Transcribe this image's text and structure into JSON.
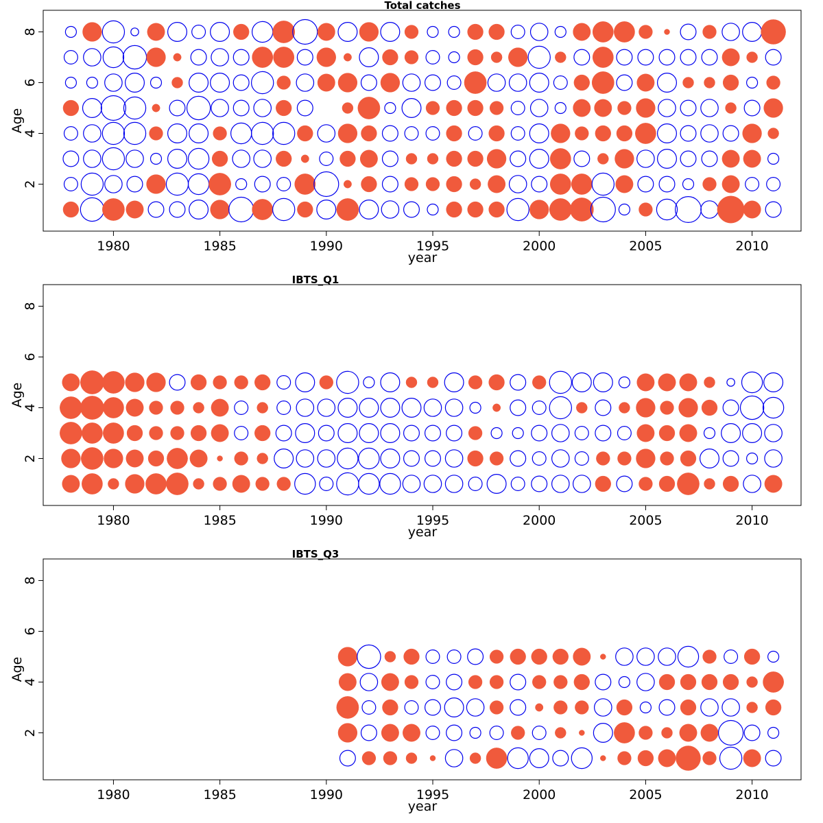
{
  "chart_data": [
    {
      "type": "scatter",
      "subtype": "bubble-residuals",
      "title": "Total catches",
      "xlabel": "year",
      "ylabel": "Age",
      "xlim": [
        1976.7,
        2012.3
      ],
      "ylim": [
        0.15,
        8.85
      ],
      "xticks": [
        1980,
        1985,
        1990,
        1995,
        2000,
        2005,
        2010
      ],
      "yticks": [
        2,
        4,
        6,
        8
      ],
      "colors": {
        "positive": "#F05A3C",
        "negative": "#0000EE"
      },
      "legend": "none",
      "grid": false,
      "years_first": 1978,
      "ages": [
        1,
        2,
        3,
        4,
        5,
        6,
        7,
        8
      ],
      "residuals": [
        [
          0.4,
          -0.3,
          -0.4,
          -0.3,
          0.4,
          -0.2,
          -0.3,
          -0.2
        ],
        [
          -0.9,
          -0.8,
          -0.5,
          -0.5,
          -0.6,
          -0.2,
          -0.5,
          0.6
        ],
        [
          0.8,
          -0.5,
          -0.8,
          -0.8,
          -1.0,
          -0.5,
          -0.7,
          -0.8
        ],
        [
          0.5,
          -0.4,
          -0.5,
          -0.8,
          -0.8,
          -0.6,
          -0.9,
          -0.1
        ],
        [
          -0.4,
          0.6,
          -0.2,
          0.3,
          0.1,
          -0.2,
          0.6,
          0.5
        ],
        [
          -0.4,
          -0.8,
          -0.6,
          -0.6,
          -0.4,
          0.2,
          0.1,
          -0.6
        ],
        [
          -0.6,
          -0.7,
          -0.7,
          -0.6,
          -0.9,
          -0.6,
          -0.4,
          -0.3
        ],
        [
          0.6,
          0.8,
          0.4,
          0.3,
          -0.5,
          -0.6,
          -0.5,
          -0.6
        ],
        [
          -1.0,
          -0.2,
          -0.5,
          -0.7,
          -0.4,
          -0.4,
          -0.4,
          0.4
        ],
        [
          0.7,
          -0.4,
          -0.5,
          -0.8,
          -0.5,
          -0.8,
          0.7,
          -0.7
        ],
        [
          -0.8,
          -0.3,
          0.4,
          -0.8,
          0.4,
          0.3,
          0.7,
          0.8
        ],
        [
          0.4,
          0.7,
          0.1,
          0.4,
          -0.4,
          -0.5,
          -0.4,
          -1.0
        ],
        [
          -0.6,
          -1.0,
          -0.3,
          -0.5,
          0.0,
          0.5,
          0.6,
          0.5
        ],
        [
          0.8,
          0.1,
          0.4,
          0.6,
          0.2,
          0.6,
          0.1,
          -0.6
        ],
        [
          -0.6,
          0.4,
          0.5,
          0.4,
          0.8,
          -0.4,
          -0.6,
          0.6
        ],
        [
          -0.5,
          -0.4,
          -0.4,
          -0.4,
          -0.2,
          0.6,
          0.4,
          -0.6
        ],
        [
          -0.4,
          0.3,
          0.2,
          -0.3,
          -0.6,
          -0.5,
          0.3,
          0.3
        ],
        [
          -0.2,
          0.3,
          0.2,
          -0.3,
          0.3,
          -0.4,
          -0.3,
          -0.2
        ],
        [
          0.4,
          0.4,
          0.4,
          0.4,
          0.4,
          -0.3,
          -0.2,
          -0.2
        ],
        [
          0.4,
          0.2,
          0.4,
          -0.3,
          0.4,
          0.8,
          0.4,
          0.4
        ],
        [
          0.4,
          0.5,
          0.6,
          0.4,
          0.3,
          -0.5,
          0.2,
          0.4
        ],
        [
          -0.8,
          -0.5,
          -0.4,
          -0.3,
          -0.3,
          -0.5,
          0.6,
          -0.3
        ],
        [
          0.6,
          -0.4,
          -0.6,
          -0.6,
          -0.5,
          -0.6,
          -0.8,
          -0.5
        ],
        [
          0.8,
          0.7,
          0.7,
          0.6,
          -0.2,
          -0.3,
          0.2,
          -0.2
        ],
        [
          0.9,
          0.7,
          -0.4,
          0.3,
          0.5,
          0.4,
          -0.4,
          0.5
        ],
        [
          -1.0,
          -0.8,
          0.2,
          0.4,
          0.5,
          0.8,
          0.7,
          0.7
        ],
        [
          -0.2,
          0.5,
          0.6,
          0.4,
          0.3,
          -0.4,
          -0.4,
          0.7
        ],
        [
          0.3,
          -0.4,
          -0.5,
          0.7,
          0.6,
          0.5,
          -0.4,
          0.3
        ],
        [
          -0.7,
          -0.4,
          -0.6,
          -0.6,
          -0.5,
          -0.6,
          -0.4,
          0.05
        ],
        [
          -1.1,
          -0.2,
          -0.4,
          -0.4,
          -0.4,
          0.2,
          -0.4,
          -0.4
        ],
        [
          -0.5,
          0.3,
          -0.4,
          -0.5,
          -0.5,
          0.2,
          -0.4,
          0.3
        ],
        [
          1.2,
          0.5,
          0.5,
          -0.4,
          0.2,
          0.4,
          0.5,
          -0.5
        ],
        [
          0.5,
          -0.3,
          0.5,
          0.6,
          -0.4,
          -0.2,
          0.2,
          -0.6
        ],
        [
          -0.4,
          -0.3,
          -0.2,
          0.2,
          0.6,
          0.3,
          -0.4,
          1.0
        ]
      ]
    },
    {
      "type": "scatter",
      "subtype": "bubble-residuals",
      "title": "IBTS_Q1",
      "xlabel": "year",
      "ylabel": "Age",
      "xlim": [
        1976.7,
        2012.3
      ],
      "ylim": [
        0.15,
        8.85
      ],
      "xticks": [
        1980,
        1985,
        1990,
        1995,
        2000,
        2005,
        2010
      ],
      "yticks": [
        2,
        4,
        6,
        8
      ],
      "colors": {
        "positive": "#F05A3C",
        "negative": "#0000EE"
      },
      "legend": "none",
      "grid": false,
      "years_first": 1978,
      "ages": [
        1,
        2,
        3,
        4,
        5
      ],
      "residuals": [
        [
          0.5,
          0.6,
          0.8,
          0.8,
          0.5
        ],
        [
          0.7,
          0.8,
          0.7,
          0.9,
          0.9
        ],
        [
          0.2,
          0.6,
          0.7,
          0.7,
          0.8
        ],
        [
          0.6,
          0.5,
          0.4,
          0.5,
          0.6
        ],
        [
          0.7,
          0.4,
          0.3,
          0.3,
          0.6
        ],
        [
          0.8,
          0.7,
          0.3,
          0.3,
          -0.4
        ],
        [
          0.2,
          0.5,
          0.4,
          0.2,
          0.4
        ],
        [
          0.3,
          0.05,
          0.5,
          0.5,
          0.3
        ],
        [
          0.5,
          0.3,
          -0.3,
          -0.3,
          0.3
        ],
        [
          0.3,
          0.2,
          0.4,
          0.2,
          0.4
        ],
        [
          0.3,
          -0.6,
          -0.4,
          -0.3,
          -0.3
        ],
        [
          -0.7,
          -0.5,
          -0.6,
          -0.5,
          -0.6
        ],
        [
          -0.3,
          -0.5,
          -0.4,
          -0.5,
          0.3
        ],
        [
          -0.8,
          -0.7,
          -0.6,
          -0.6,
          -0.8
        ],
        [
          -0.7,
          -0.7,
          -0.6,
          -0.6,
          -0.2
        ],
        [
          -0.7,
          -0.6,
          -0.6,
          -0.6,
          -0.6
        ],
        [
          -0.5,
          -0.4,
          -0.4,
          -0.6,
          0.2
        ],
        [
          -0.5,
          -0.4,
          -0.4,
          -0.5,
          0.2
        ],
        [
          -0.5,
          -0.5,
          -0.4,
          -0.5,
          -0.6
        ],
        [
          -0.3,
          0.4,
          0.3,
          -0.2,
          0.3
        ],
        [
          -0.6,
          0.3,
          -0.2,
          0.1,
          0.4
        ],
        [
          -0.3,
          -0.4,
          -0.2,
          -0.4,
          -0.4
        ],
        [
          -0.4,
          -0.3,
          -0.4,
          -0.3,
          0.3
        ],
        [
          -0.5,
          -0.5,
          -0.5,
          -0.8,
          -0.8
        ],
        [
          -0.5,
          -0.3,
          -0.3,
          0.2,
          -0.6
        ],
        [
          0.4,
          0.3,
          -0.4,
          -0.4,
          -0.6
        ],
        [
          -0.4,
          0.3,
          -0.3,
          0.2,
          -0.2
        ],
        [
          0.3,
          0.6,
          0.5,
          0.6,
          0.5
        ],
        [
          0.4,
          0.3,
          0.4,
          0.3,
          0.5
        ],
        [
          0.8,
          0.4,
          0.5,
          0.6,
          0.5
        ],
        [
          0.2,
          -0.6,
          -0.2,
          0.4,
          0.2
        ],
        [
          0.4,
          -0.4,
          -0.6,
          -0.4,
          -0.1
        ],
        [
          -0.5,
          -0.2,
          -0.6,
          -0.9,
          -0.7
        ],
        [
          0.5,
          -0.5,
          -0.5,
          -0.7,
          -0.6
        ]
      ]
    },
    {
      "type": "scatter",
      "subtype": "bubble-residuals",
      "title": "IBTS_Q3",
      "xlabel": "year",
      "ylabel": "Age",
      "xlim": [
        1976.7,
        2012.3
      ],
      "ylim": [
        0.15,
        8.85
      ],
      "xticks": [
        1980,
        1985,
        1990,
        1995,
        2000,
        2005,
        2010
      ],
      "yticks": [
        2,
        4,
        6,
        8
      ],
      "colors": {
        "positive": "#F05A3C",
        "negative": "#0000EE"
      },
      "legend": "none",
      "grid": false,
      "years_first": 1991,
      "ages": [
        1,
        2,
        3,
        4,
        5
      ],
      "residuals": [
        [
          -0.4,
          0.6,
          0.8,
          0.5,
          0.6
        ],
        [
          0.3,
          -0.4,
          -0.3,
          -0.5,
          -0.9
        ],
        [
          0.3,
          0.5,
          0.4,
          0.5,
          0.2
        ],
        [
          0.2,
          0.5,
          -0.3,
          0.3,
          0.4
        ],
        [
          0.05,
          -0.3,
          -0.4,
          -0.3,
          -0.3
        ],
        [
          -0.5,
          -0.4,
          -0.6,
          -0.4,
          -0.3
        ],
        [
          0.2,
          -0.2,
          -0.5,
          0.3,
          -0.4
        ],
        [
          0.7,
          -0.3,
          0.3,
          0.3,
          0.3
        ],
        [
          -0.7,
          0.3,
          -0.4,
          -0.4,
          0.4
        ],
        [
          -0.6,
          -0.3,
          0.1,
          0.3,
          0.4
        ],
        [
          -0.4,
          0.2,
          0.3,
          0.3,
          0.4
        ],
        [
          -0.7,
          0.05,
          0.3,
          0.4,
          0.5
        ],
        [
          0.05,
          -0.6,
          -0.5,
          -0.4,
          0.05
        ],
        [
          0.3,
          0.7,
          0.4,
          -0.2,
          -0.5
        ],
        [
          0.4,
          0.3,
          -0.2,
          -0.5,
          -0.5
        ],
        [
          0.5,
          0.2,
          -0.4,
          0.4,
          -0.5
        ],
        [
          1.0,
          0.5,
          0.4,
          0.4,
          -0.7
        ],
        [
          0.3,
          0.5,
          -0.5,
          0.4,
          0.3
        ],
        [
          -0.8,
          -1.0,
          -0.5,
          0.4,
          -0.3
        ],
        [
          0.5,
          -0.4,
          0.2,
          0.2,
          0.4
        ],
        [
          -0.4,
          -0.2,
          0.4,
          0.7,
          -0.2
        ]
      ]
    }
  ]
}
